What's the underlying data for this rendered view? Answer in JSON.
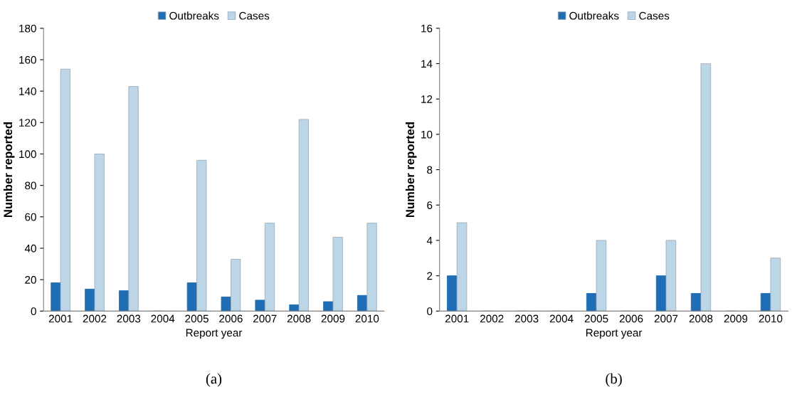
{
  "chart_data": [
    {
      "type": "bar",
      "xlabel": "Report year",
      "ylabel": "Number reported",
      "categories": [
        "2001",
        "2002",
        "2003",
        "2004",
        "2005",
        "2006",
        "2007",
        "2008",
        "2009",
        "2010"
      ],
      "series": [
        {
          "name": "Outbreaks",
          "color": "#1f6db5",
          "values": [
            18,
            14,
            13,
            0,
            18,
            9,
            7,
            4,
            6,
            10
          ]
        },
        {
          "name": "Cases",
          "color": "#bcd6e8",
          "values": [
            154,
            100,
            143,
            0,
            96,
            33,
            56,
            122,
            47,
            56
          ]
        }
      ],
      "ylim": [
        0,
        180
      ],
      "yticks": [
        0,
        20,
        40,
        60,
        80,
        100,
        120,
        140,
        160,
        180
      ],
      "grid": false,
      "legend": "top",
      "annotations": [
        "(a)"
      ]
    },
    {
      "type": "bar",
      "xlabel": "Report year",
      "ylabel": "Number reported",
      "categories": [
        "2001",
        "2002",
        "2003",
        "2004",
        "2005",
        "2006",
        "2007",
        "2008",
        "2009",
        "2010"
      ],
      "series": [
        {
          "name": "Outbreaks",
          "color": "#1f6db5",
          "values": [
            2,
            0,
            0,
            0,
            1,
            0,
            2,
            1,
            0,
            1
          ]
        },
        {
          "name": "Cases",
          "color": "#bcd6e8",
          "values": [
            5,
            0,
            0,
            0,
            4,
            0,
            4,
            14,
            0,
            3
          ]
        }
      ],
      "ylim": [
        0,
        16
      ],
      "yticks": [
        0,
        2,
        4,
        6,
        8,
        10,
        12,
        14,
        16
      ],
      "grid": false,
      "legend": "top",
      "annotations": [
        "(b)"
      ]
    }
  ]
}
